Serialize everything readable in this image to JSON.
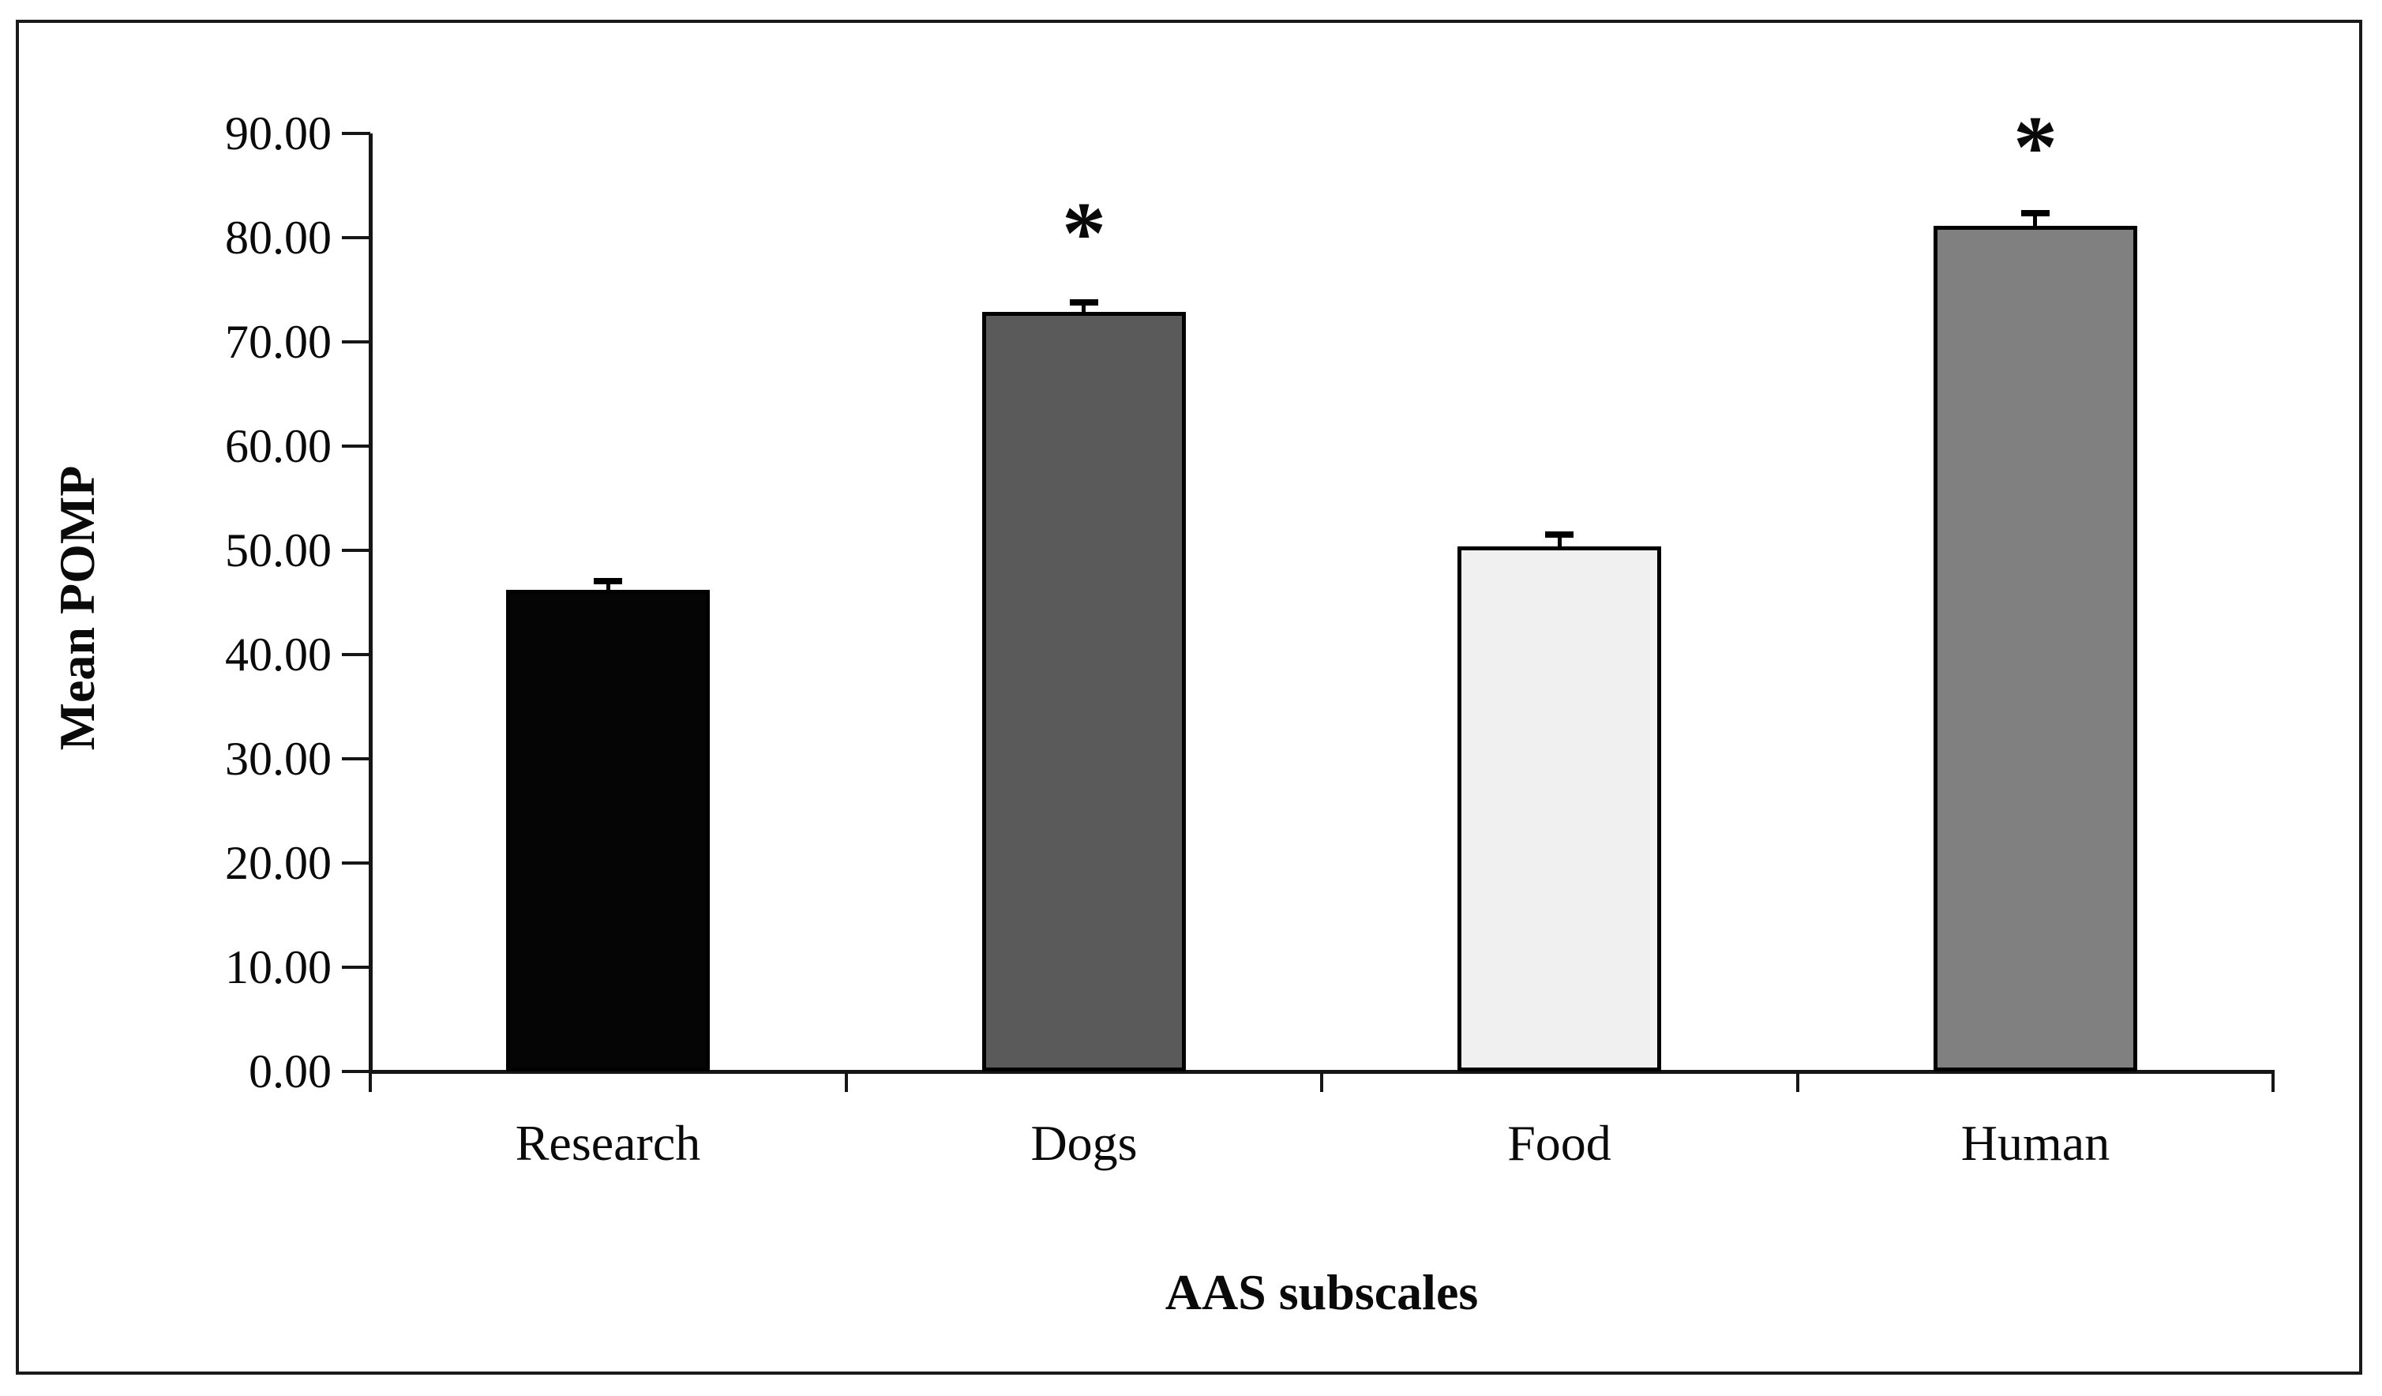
{
  "figure": {
    "background": "#ffffff",
    "frame_border_color": "#1a1a1a"
  },
  "chart_data": {
    "type": "bar",
    "title": "",
    "categories": [
      "Research",
      "Dogs",
      "Food",
      "Human"
    ],
    "values": [
      46.2,
      72.9,
      50.4,
      81.1
    ],
    "errors_upper": [
      0.5,
      0.5,
      0.7,
      0.9
    ],
    "bar_colors": [
      "#050505",
      "#5a5a5a",
      "#f0f0f0",
      "#808080"
    ],
    "bar_border_color": "#000000",
    "significance_markers": [
      {
        "category": "Dogs",
        "symbol": "*"
      },
      {
        "category": "Human",
        "symbol": "*"
      }
    ],
    "xlabel": "AAS subscales",
    "ylabel": "Mean POMP",
    "ylim": [
      0,
      90
    ],
    "ytick_step": 10,
    "ytick_labels": [
      "0.00",
      "10.00",
      "20.00",
      "30.00",
      "40.00",
      "50.00",
      "60.00",
      "70.00",
      "80.00",
      "90.00"
    ],
    "grid": "off",
    "legend": "none",
    "error_bar_direction": "upper-only"
  }
}
